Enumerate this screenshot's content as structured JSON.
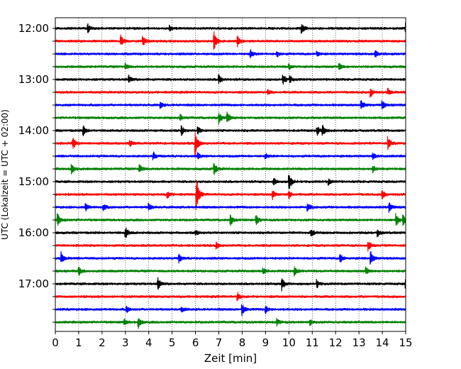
{
  "chart_data": {
    "type": "line",
    "subtype": "helicorder",
    "xlabel": "Zeit  [min]",
    "ylabel": "UTC (Lokalzeit = UTC + 02:00)",
    "xlim": [
      0,
      15
    ],
    "x_ticks": [
      "0",
      "1",
      "2",
      "3",
      "4",
      "5",
      "6",
      "7",
      "8",
      "9",
      "10",
      "11",
      "12",
      "13",
      "14",
      "15"
    ],
    "grid": "vertical dotted lines at each minute",
    "color_cycle": [
      "#000000",
      "#ff0000",
      "#0000ff",
      "#008000"
    ],
    "trace_interval_minutes": 15,
    "traces": [
      {
        "start": "12:00",
        "color": "#000000",
        "label": "12:00"
      },
      {
        "start": "12:15",
        "color": "#ff0000",
        "label": ""
      },
      {
        "start": "12:30",
        "color": "#0000ff",
        "label": ""
      },
      {
        "start": "12:45",
        "color": "#008000",
        "label": ""
      },
      {
        "start": "13:00",
        "color": "#000000",
        "label": "13:00"
      },
      {
        "start": "13:15",
        "color": "#ff0000",
        "label": ""
      },
      {
        "start": "13:30",
        "color": "#0000ff",
        "label": ""
      },
      {
        "start": "13:45",
        "color": "#008000",
        "label": ""
      },
      {
        "start": "14:00",
        "color": "#000000",
        "label": "14:00"
      },
      {
        "start": "14:15",
        "color": "#ff0000",
        "label": ""
      },
      {
        "start": "14:30",
        "color": "#0000ff",
        "label": ""
      },
      {
        "start": "14:45",
        "color": "#008000",
        "label": ""
      },
      {
        "start": "15:00",
        "color": "#000000",
        "label": "15:00"
      },
      {
        "start": "15:15",
        "color": "#ff0000",
        "label": ""
      },
      {
        "start": "15:30",
        "color": "#0000ff",
        "label": ""
      },
      {
        "start": "15:45",
        "color": "#008000",
        "label": ""
      },
      {
        "start": "16:00",
        "color": "#000000",
        "label": "16:00"
      },
      {
        "start": "16:15",
        "color": "#ff0000",
        "label": ""
      },
      {
        "start": "16:30",
        "color": "#0000ff",
        "label": ""
      },
      {
        "start": "16:45",
        "color": "#008000",
        "label": ""
      },
      {
        "start": "17:00",
        "color": "#000000",
        "label": "17:00"
      },
      {
        "start": "17:15",
        "color": "#ff0000",
        "label": ""
      },
      {
        "start": "17:30",
        "color": "#0000ff",
        "label": ""
      },
      {
        "start": "17:45",
        "color": "#008000",
        "label": ""
      }
    ],
    "events": [
      {
        "trace": 0,
        "x": 1.4,
        "amp": 0.4
      },
      {
        "trace": 0,
        "x": 4.9,
        "amp": 0.25
      },
      {
        "trace": 0,
        "x": 10.55,
        "amp": 0.5
      },
      {
        "trace": 0,
        "x": 15.0,
        "amp": 0.6
      },
      {
        "trace": 1,
        "x": 2.8,
        "amp": 0.6
      },
      {
        "trace": 1,
        "x": 3.75,
        "amp": 0.5
      },
      {
        "trace": 1,
        "x": 6.8,
        "amp": 1.0
      },
      {
        "trace": 1,
        "x": 7.8,
        "amp": 0.5
      },
      {
        "trace": 2,
        "x": 8.35,
        "amp": 0.5
      },
      {
        "trace": 2,
        "x": 9.5,
        "amp": 0.25
      },
      {
        "trace": 2,
        "x": 11.2,
        "amp": 0.3
      },
      {
        "trace": 2,
        "x": 13.7,
        "amp": 0.3
      },
      {
        "trace": 3,
        "x": 3.0,
        "amp": 0.3
      },
      {
        "trace": 3,
        "x": 10.0,
        "amp": 0.3
      },
      {
        "trace": 3,
        "x": 12.15,
        "amp": 0.4
      },
      {
        "trace": 4,
        "x": 3.15,
        "amp": 0.4
      },
      {
        "trace": 4,
        "x": 7.0,
        "amp": 0.5
      },
      {
        "trace": 4,
        "x": 9.75,
        "amp": 0.6
      },
      {
        "trace": 4,
        "x": 10.05,
        "amp": 0.3
      },
      {
        "trace": 5,
        "x": 9.1,
        "amp": 0.25
      },
      {
        "trace": 5,
        "x": 13.5,
        "amp": 0.5
      },
      {
        "trace": 5,
        "x": 14.25,
        "amp": 0.3
      },
      {
        "trace": 6,
        "x": 4.5,
        "amp": 0.3
      },
      {
        "trace": 6,
        "x": 13.1,
        "amp": 0.4
      },
      {
        "trace": 6,
        "x": 14.0,
        "amp": 0.4
      },
      {
        "trace": 7,
        "x": 5.35,
        "amp": 0.3
      },
      {
        "trace": 7,
        "x": 7.0,
        "amp": 0.6
      },
      {
        "trace": 7,
        "x": 7.35,
        "amp": 0.6
      },
      {
        "trace": 8,
        "x": 1.2,
        "amp": 0.5
      },
      {
        "trace": 8,
        "x": 5.4,
        "amp": 0.5
      },
      {
        "trace": 8,
        "x": 6.1,
        "amp": 0.4
      },
      {
        "trace": 8,
        "x": 11.2,
        "amp": 0.5
      },
      {
        "trace": 8,
        "x": 11.45,
        "amp": 0.5
      },
      {
        "trace": 9,
        "x": 0.75,
        "amp": 0.6
      },
      {
        "trace": 9,
        "x": 3.2,
        "amp": 0.3
      },
      {
        "trace": 9,
        "x": 6.0,
        "amp": 1.2
      },
      {
        "trace": 9,
        "x": 14.25,
        "amp": 0.6
      },
      {
        "trace": 10,
        "x": 4.2,
        "amp": 0.4
      },
      {
        "trace": 10,
        "x": 6.1,
        "amp": 0.3
      },
      {
        "trace": 10,
        "x": 9.0,
        "amp": 0.3
      },
      {
        "trace": 10,
        "x": 13.6,
        "amp": 0.3
      },
      {
        "trace": 11,
        "x": 0.7,
        "amp": 0.6
      },
      {
        "trace": 11,
        "x": 3.6,
        "amp": 0.5
      },
      {
        "trace": 11,
        "x": 6.8,
        "amp": 0.7
      },
      {
        "trace": 11,
        "x": 13.6,
        "amp": 0.4
      },
      {
        "trace": 12,
        "x": 9.35,
        "amp": 0.4
      },
      {
        "trace": 12,
        "x": 10.0,
        "amp": 1.0
      },
      {
        "trace": 12,
        "x": 11.7,
        "amp": 0.3
      },
      {
        "trace": 13,
        "x": 4.8,
        "amp": 0.4
      },
      {
        "trace": 13,
        "x": 6.05,
        "amp": 1.5
      },
      {
        "trace": 13,
        "x": 9.3,
        "amp": 0.5
      },
      {
        "trace": 13,
        "x": 10.0,
        "amp": 0.4
      },
      {
        "trace": 13,
        "x": 14.0,
        "amp": 0.5
      },
      {
        "trace": 14,
        "x": 1.3,
        "amp": 0.4
      },
      {
        "trace": 14,
        "x": 2.05,
        "amp": 0.4
      },
      {
        "trace": 14,
        "x": 4.0,
        "amp": 0.4
      },
      {
        "trace": 14,
        "x": 10.8,
        "amp": 0.5
      },
      {
        "trace": 14,
        "x": 14.3,
        "amp": 0.5
      },
      {
        "trace": 15,
        "x": 0.1,
        "amp": 0.6
      },
      {
        "trace": 15,
        "x": 7.5,
        "amp": 0.5
      },
      {
        "trace": 15,
        "x": 8.6,
        "amp": 0.5
      },
      {
        "trace": 15,
        "x": 14.6,
        "amp": 0.6
      },
      {
        "trace": 15,
        "x": 14.9,
        "amp": 0.5
      },
      {
        "trace": 16,
        "x": 3.0,
        "amp": 0.6
      },
      {
        "trace": 16,
        "x": 6.0,
        "amp": 0.3
      },
      {
        "trace": 16,
        "x": 10.95,
        "amp": 0.5
      },
      {
        "trace": 16,
        "x": 13.8,
        "amp": 0.4
      },
      {
        "trace": 17,
        "x": 6.9,
        "amp": 0.3
      },
      {
        "trace": 17,
        "x": 13.4,
        "amp": 0.5
      },
      {
        "trace": 18,
        "x": 0.25,
        "amp": 0.6
      },
      {
        "trace": 18,
        "x": 5.3,
        "amp": 0.4
      },
      {
        "trace": 18,
        "x": 12.2,
        "amp": 0.5
      },
      {
        "trace": 18,
        "x": 13.5,
        "amp": 0.7
      },
      {
        "trace": 19,
        "x": 1.0,
        "amp": 0.5
      },
      {
        "trace": 19,
        "x": 8.9,
        "amp": 0.3
      },
      {
        "trace": 19,
        "x": 10.25,
        "amp": 0.5
      },
      {
        "trace": 19,
        "x": 13.3,
        "amp": 0.4
      },
      {
        "trace": 20,
        "x": 4.4,
        "amp": 0.6
      },
      {
        "trace": 20,
        "x": 9.7,
        "amp": 0.7
      },
      {
        "trace": 20,
        "x": 11.2,
        "amp": 0.4
      },
      {
        "trace": 20,
        "x": 15.0,
        "amp": 0.5
      },
      {
        "trace": 21,
        "x": 7.8,
        "amp": 0.4
      },
      {
        "trace": 22,
        "x": 3.05,
        "amp": 0.3
      },
      {
        "trace": 22,
        "x": 5.4,
        "amp": 0.3
      },
      {
        "trace": 22,
        "x": 8.0,
        "amp": 0.6
      },
      {
        "trace": 22,
        "x": 9.0,
        "amp": 0.4
      },
      {
        "trace": 23,
        "x": 2.95,
        "amp": 0.3
      },
      {
        "trace": 23,
        "x": 3.55,
        "amp": 0.6
      },
      {
        "trace": 23,
        "x": 9.5,
        "amp": 0.4
      },
      {
        "trace": 23,
        "x": 10.9,
        "amp": 0.3
      }
    ]
  }
}
